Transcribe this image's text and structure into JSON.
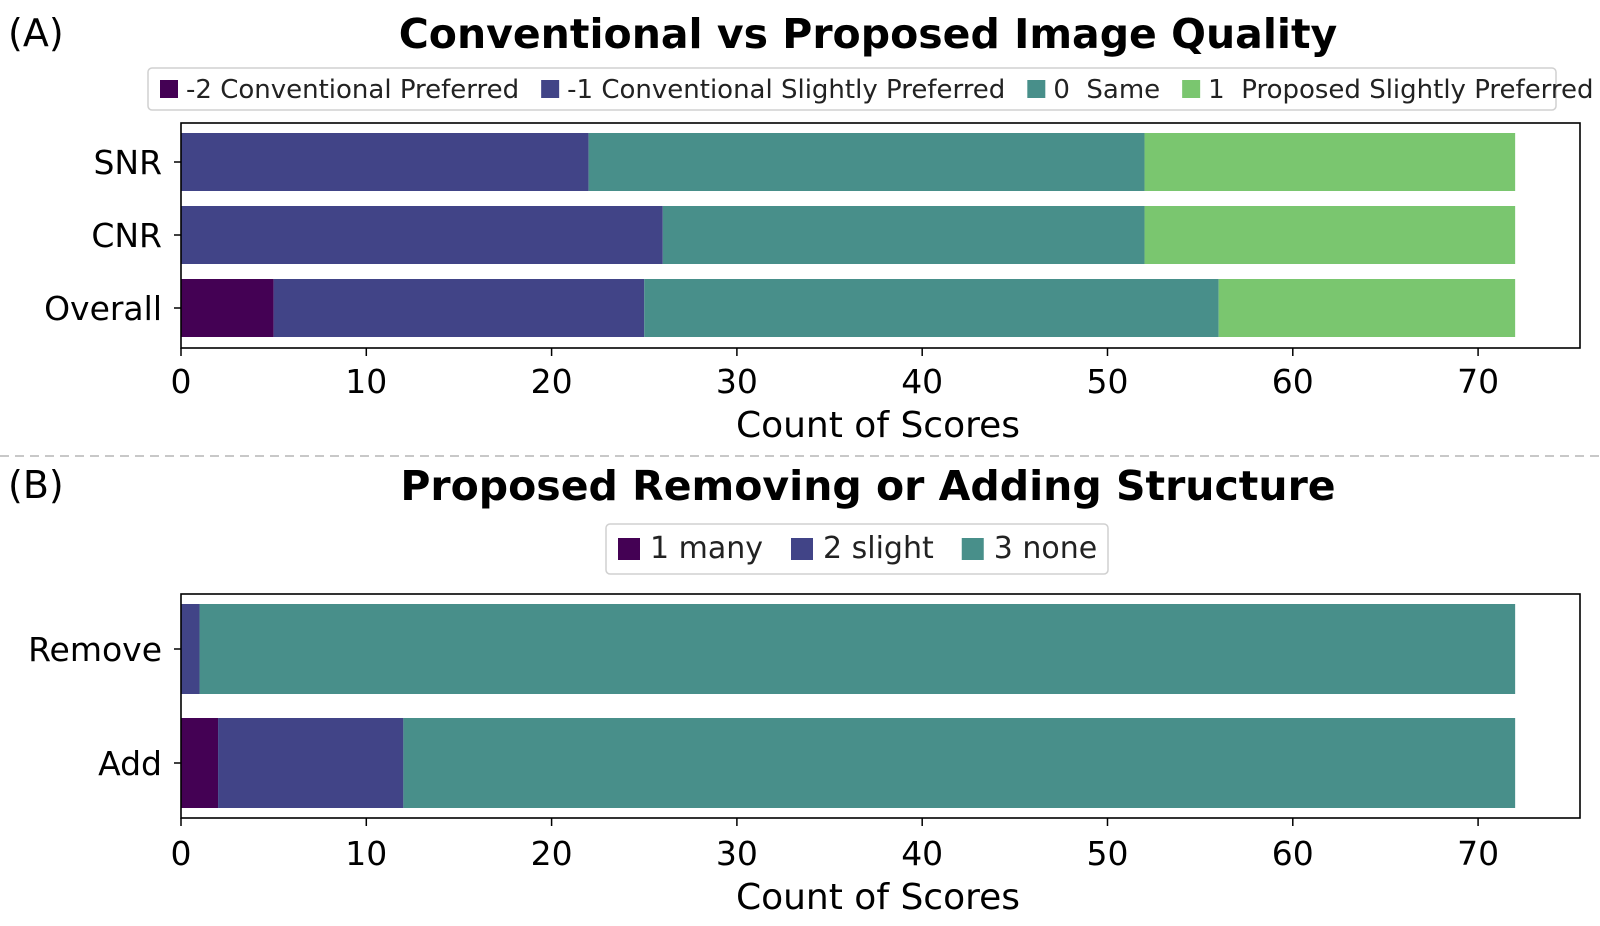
{
  "panels": [
    {
      "label": "(A)"
    },
    {
      "label": "(B)"
    }
  ],
  "chart_data": [
    {
      "type": "bar",
      "orientation": "horizontal",
      "stacked": true,
      "title": "Conventional vs Proposed Image Quality",
      "xlabel": "Count of Scores",
      "ylabel": "",
      "xlim": [
        0,
        75.5
      ],
      "xticks": [
        "0",
        "10",
        "20",
        "30",
        "40",
        "50",
        "60",
        "70"
      ],
      "categories": [
        "SNR",
        "CNR",
        "Overall"
      ],
      "legend_position": "top",
      "series": [
        {
          "name": "-2 Conventional Preferred",
          "color": "#440154",
          "values": [
            0,
            0,
            5
          ]
        },
        {
          "name": "-1 Conventional Slightly Preferred",
          "color": "#414487",
          "values": [
            22,
            26,
            20
          ]
        },
        {
          "name": "0  Same",
          "color": "#488f8a",
          "values": [
            30,
            26,
            31
          ]
        },
        {
          "name": "1  Proposed Slightly Preferred",
          "color": "#7ac66f",
          "values": [
            20,
            20,
            16
          ]
        }
      ]
    },
    {
      "type": "bar",
      "orientation": "horizontal",
      "stacked": true,
      "title": "Proposed Removing or Adding Structure",
      "xlabel": "Count of Scores",
      "ylabel": "",
      "xlim": [
        0,
        75.5
      ],
      "xticks": [
        "0",
        "10",
        "20",
        "30",
        "40",
        "50",
        "60",
        "70"
      ],
      "categories": [
        "Remove",
        "Add"
      ],
      "legend_position": "top",
      "series": [
        {
          "name": "1 many",
          "color": "#440154",
          "values": [
            0,
            2
          ]
        },
        {
          "name": "2 slight",
          "color": "#414487",
          "values": [
            1,
            10
          ]
        },
        {
          "name": "3 none",
          "color": "#488f8a",
          "values": [
            71,
            60
          ]
        }
      ]
    }
  ]
}
